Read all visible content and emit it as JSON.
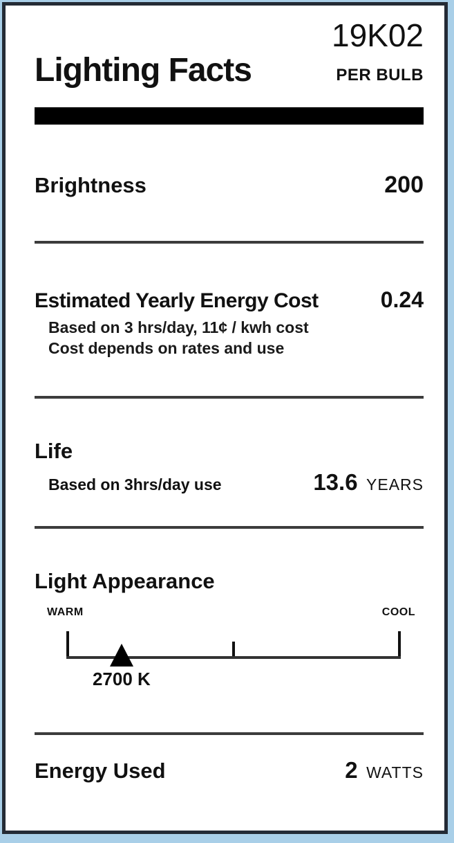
{
  "label": {
    "code": "19K02",
    "title": "Lighting Facts",
    "per_unit": "PER BULB",
    "sections": {
      "brightness": {
        "label": "Brightness",
        "value": "200"
      },
      "energy_cost": {
        "label": "Estimated Yearly Energy Cost",
        "value": "0.24",
        "note1": "Based on 3 hrs/day, 11¢ / kwh cost",
        "note2": "Cost depends on rates and use"
      },
      "life": {
        "label": "Life",
        "note": "Based on 3hrs/day use",
        "value": "13.6",
        "unit": "YEARS"
      },
      "light_appearance": {
        "label": "Light Appearance",
        "warm_label": "WARM",
        "cool_label": "COOL",
        "marker_value": "2700 K",
        "marker_position_pct": 16.5
      },
      "energy_used": {
        "label": "Energy Used",
        "value": "2",
        "unit": "WATTS"
      }
    },
    "colors": {
      "frame_blue": "#a9cfe8",
      "border_dark": "#242b35",
      "bar_black": "#000000",
      "divider_gray": "#3c3c3c",
      "text": "#111111"
    }
  }
}
